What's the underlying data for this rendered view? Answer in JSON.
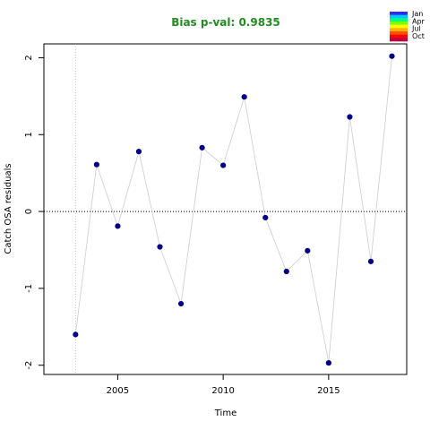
{
  "chart_data": {
    "type": "scatter",
    "title": "Bias p-val: 0.9835",
    "title_color": "#228B22",
    "xlabel": "Time",
    "ylabel": "Catch OSA residuals",
    "xlim": [
      2001.5,
      2018.7
    ],
    "ylim": [
      -2.12,
      2.18
    ],
    "x_ticks": [
      2005,
      2010,
      2015
    ],
    "y_ticks": [
      -2,
      -1,
      0,
      1,
      2
    ],
    "x_vline": 2003,
    "h_ref_line": 0,
    "points": [
      {
        "x": 2003,
        "y": -1.6
      },
      {
        "x": 2004,
        "y": 0.61
      },
      {
        "x": 2005,
        "y": -0.19
      },
      {
        "x": 2006,
        "y": 0.78
      },
      {
        "x": 2007,
        "y": -0.46
      },
      {
        "x": 2008,
        "y": -1.2
      },
      {
        "x": 2009,
        "y": 0.83
      },
      {
        "x": 2010,
        "y": 0.6
      },
      {
        "x": 2011,
        "y": 1.49
      },
      {
        "x": 2012,
        "y": -0.08
      },
      {
        "x": 2013,
        "y": -0.78
      },
      {
        "x": 2014,
        "y": -0.51
      },
      {
        "x": 2015,
        "y": -1.97
      },
      {
        "x": 2016,
        "y": 1.23
      },
      {
        "x": 2017,
        "y": -0.65
      },
      {
        "x": 2018,
        "y": 2.02
      }
    ],
    "point_color": "#00008B",
    "line_color": "#cccccc",
    "legend": {
      "placement": "top-right",
      "labels": [
        "Jan",
        "Apr",
        "Jul",
        "Oct"
      ],
      "colors": [
        "#2a2aff",
        "#00c8ff",
        "#00ff80",
        "#80ff00",
        "#ffff00",
        "#ffb000",
        "#ff5000",
        "#ff0000",
        "#c00040"
      ]
    }
  }
}
